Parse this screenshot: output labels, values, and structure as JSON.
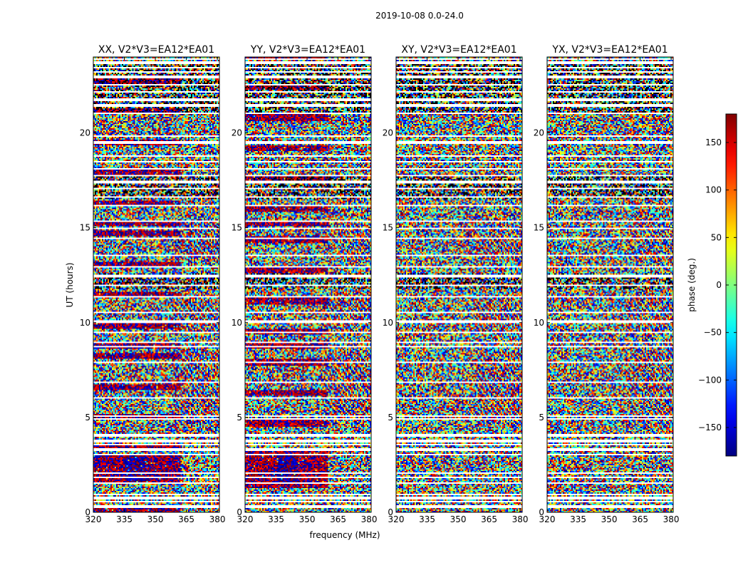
{
  "chart_data": {
    "type": "heatmap",
    "suptitle": "2019-10-08 0.0-24.0",
    "xlabel": "frequency (MHz)",
    "ylabel": "UT (hours)",
    "xlim": [
      320,
      381
    ],
    "ylim": [
      0,
      24
    ],
    "xticks": [
      320,
      335,
      350,
      365,
      380
    ],
    "yticks": [
      0,
      5,
      10,
      15,
      20
    ],
    "panels": [
      {
        "title": "XX, V2*V3=EA12*EA01",
        "ext_bias": 175,
        "ext_freq": [
          320,
          362
        ],
        "ext_strength": 0.95
      },
      {
        "title": "YY, V2*V3=EA12*EA01",
        "ext_bias": 170,
        "ext_freq": [
          320,
          360
        ],
        "ext_strength": 0.95
      },
      {
        "title": "XY, V2*V3=EA12*EA01",
        "ext_bias": 0,
        "ext_freq": [
          320,
          320
        ],
        "ext_strength": 0.0
      },
      {
        "title": "YX, V2*V3=EA12*EA01",
        "ext_bias": 0,
        "ext_freq": [
          320,
          320
        ],
        "ext_strength": 0.0
      }
    ],
    "colorbar": {
      "label": "phase (deg.)",
      "range": [
        -180,
        180
      ],
      "ticks": [
        -150,
        -100,
        -50,
        0,
        50,
        100,
        150
      ],
      "colormap": "jet",
      "tick_labels": [
        "−150",
        "−100",
        "−50",
        "0",
        "50",
        "100",
        "150"
      ]
    },
    "flagged_ut_hours": [
      0.3,
      0.55,
      0.75,
      0.95,
      1.55,
      1.85,
      2.05,
      3.05,
      3.3,
      3.55,
      3.75,
      4.05,
      4.9,
      5.05,
      6.05,
      6.85,
      7.9,
      8.75,
      8.95,
      9.5,
      10.05,
      10.55,
      11.35,
      11.95,
      12.45,
      12.95,
      13.55,
      14.45,
      14.95,
      15.35,
      16.15,
      16.6,
      17.05,
      17.4,
      17.75,
      18.1,
      18.5,
      18.8,
      19.5,
      19.85,
      21.05,
      21.45,
      21.75,
      22.15,
      22.55,
      22.95,
      23.2,
      23.45,
      23.7,
      23.9
    ]
  }
}
